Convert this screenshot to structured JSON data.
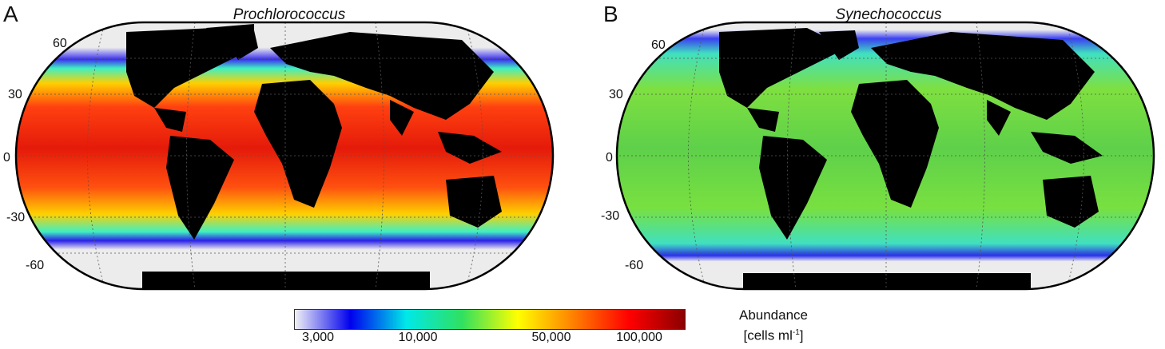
{
  "panels": [
    {
      "letter": "A",
      "title": "Prochlorococcus"
    },
    {
      "letter": "B",
      "title": "Synechococcus"
    }
  ],
  "latitude_labels": [
    "60",
    "30",
    "0",
    "-30",
    "-60"
  ],
  "colorbar": {
    "tick_labels": [
      "3,000",
      "10,000",
      "50,000",
      "100,000"
    ],
    "colors": [
      "#f0f0f5",
      "#0000ee",
      "#00e8e8",
      "#30e060",
      "#ffff00",
      "#ff8000",
      "#ff0000",
      "#8b0000"
    ]
  },
  "legend": {
    "line1": "Abundance",
    "line2_prefix": "[cells ml",
    "line2_sup": "-1",
    "line2_suffix": "]"
  },
  "map_colors": {
    "ocean_a": "#ee2a10",
    "ocean_b": "#5ed04a",
    "land": "#000000",
    "ice": "#ececec",
    "edge": "#1a30e0"
  }
}
